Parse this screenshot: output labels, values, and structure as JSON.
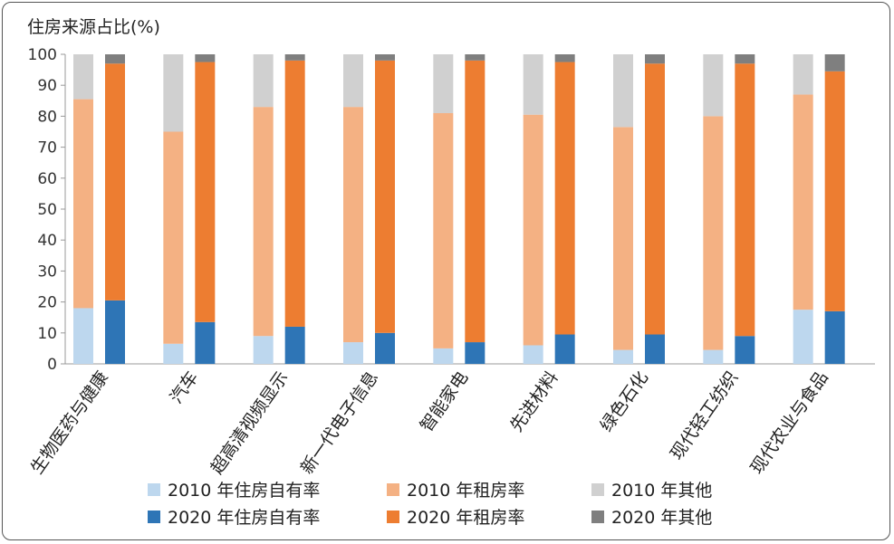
{
  "chart_data": {
    "type": "bar",
    "stacked": true,
    "ylabel": "住房来源占比(%)",
    "ylim": [
      0,
      100
    ],
    "yticks": [
      0,
      10,
      20,
      30,
      40,
      50,
      60,
      70,
      80,
      90,
      100
    ],
    "grid": false,
    "legend_position": "bottom",
    "categories": [
      "生物医药与健康",
      "汽车",
      "超高清视频显示",
      "新一代电子信息",
      "智能家电",
      "先进材料",
      "绿色石化",
      "现代轻工纺织",
      "现代农业与食品"
    ],
    "groups": [
      {
        "year": "2010",
        "series": [
          {
            "name": "2010 年住房自有率",
            "color": "#bdd7ee",
            "values": [
              18,
              6.5,
              9,
              7,
              5,
              6,
              4.5,
              4.5,
              17.5
            ]
          },
          {
            "name": "2010 年租房率",
            "color": "#f4b183",
            "values": [
              67.5,
              68.5,
              74,
              76,
              76,
              74.5,
              72,
              75.5,
              69.5
            ]
          },
          {
            "name": "2010 年其他",
            "color": "#d0d0d0",
            "values": [
              14.5,
              25,
              17,
              17,
              19,
              19.5,
              23.5,
              20,
              13
            ]
          }
        ]
      },
      {
        "year": "2020",
        "series": [
          {
            "name": "2020 年住房自有率",
            "color": "#2e75b6",
            "values": [
              20.5,
              13.5,
              12,
              10,
              7,
              9.5,
              9.5,
              9,
              17
            ]
          },
          {
            "name": "2020 年租房率",
            "color": "#ed7d31",
            "values": [
              76.5,
              84,
              86,
              88,
              91,
              88,
              87.5,
              88,
              77.5
            ]
          },
          {
            "name": "2020 年其他",
            "color": "#7f7f7f",
            "values": [
              3,
              2.5,
              2,
              2,
              2,
              2.5,
              3,
              3,
              5.5
            ]
          }
        ]
      }
    ]
  }
}
